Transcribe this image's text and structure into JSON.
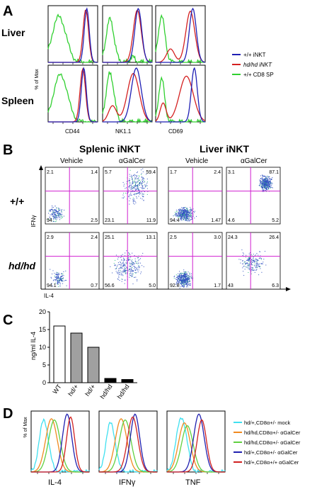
{
  "panels": {
    "A": {
      "letter": "A",
      "rows": [
        "Liver",
        "Spleen"
      ],
      "ylabel": "% of Max",
      "xlabels": [
        "CD44",
        "NK1.1",
        "CD69"
      ],
      "legend": [
        {
          "label": "+/+ iNKT",
          "color": "#1f1fb4"
        },
        {
          "label": "hd/hd iNKT",
          "color": "#d42020"
        },
        {
          "label": "+/+ CD8 SP",
          "color": "#30d030"
        }
      ]
    },
    "B": {
      "letter": "B",
      "group_titles": [
        "Splenic iNKT",
        "Liver iNKT"
      ],
      "col_labels": [
        "Vehicle",
        "αGalCer",
        "Vehicle",
        "αGalCer"
      ],
      "row_labels": [
        "+/+",
        "hd/hd"
      ],
      "ylabel": "IFNγ",
      "xlabel": "IL-4",
      "quadrants": [
        [
          [
            "2.1",
            "1.4",
            "94",
            "2.5"
          ],
          [
            "5.7",
            "59.4",
            "23.1",
            "11.9"
          ],
          [
            "1.7",
            "2.4",
            "94.4",
            "1.47"
          ],
          [
            "3.1",
            "87.1",
            "4.6",
            "5.2"
          ]
        ],
        [
          [
            "2.9",
            "2.4",
            "94.1",
            "0.7"
          ],
          [
            "25.1",
            "13.1",
            "56.6",
            "5.0"
          ],
          [
            "2.5",
            "3.0",
            "92.8",
            "1.7"
          ],
          [
            "24.3",
            "26.4",
            "43",
            "6.3"
          ]
        ]
      ]
    },
    "C": {
      "letter": "C",
      "ylabel": "ng/ml IL-4"
    },
    "D": {
      "letter": "D",
      "ylabel": "% of Max",
      "xlabels": [
        "IL-4",
        "IFNγ",
        "TNF"
      ],
      "legend": [
        {
          "label": "hd/+,CD8α+/- mock",
          "color": "#40e0f0"
        },
        {
          "label": "hd/hd,CD8α+/- αGalCer",
          "color": "#f08a20"
        },
        {
          "label": "hd/hd,CD8α+/- αGalCer",
          "color": "#60d040"
        },
        {
          "label": "hd/+,CD8α+/- αGalCer",
          "color": "#2020b0"
        },
        {
          "label": "hd/+,CD8α+/+ αGalCer",
          "color": "#d02020"
        }
      ]
    }
  },
  "chart_data": {
    "type": "bar",
    "categories": [
      "WT",
      "hd/+",
      "hd/+",
      "hd/hd",
      "hd/hd"
    ],
    "values": [
      16,
      14,
      10,
      1.2,
      0.9
    ],
    "bar_colors": [
      "#ffffff",
      "#a0a0a0",
      "#a0a0a0",
      "#000000",
      "#000000"
    ],
    "ylabel": "ng/ml IL-4",
    "ylim": [
      0,
      20
    ],
    "yticks": [
      0,
      5,
      10,
      15,
      20
    ]
  }
}
